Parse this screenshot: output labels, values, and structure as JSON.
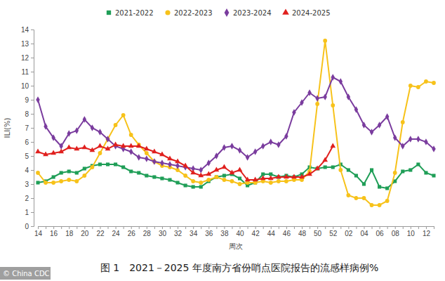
{
  "chart_data": {
    "type": "line",
    "title": "图 1　2021－2025 年度南方省份哨点医院报告的流感样病例%",
    "x_label": "周次",
    "y_label": "ILI(%)",
    "annotations": [
      "© China CDC"
    ],
    "categories": [
      "14",
      null,
      "16",
      null,
      "18",
      null,
      "20",
      null,
      "22",
      null,
      "24",
      null,
      "26",
      null,
      "28",
      null,
      "30",
      null,
      "32",
      null,
      "34",
      null,
      "36",
      null,
      "38",
      null,
      "40",
      null,
      "42",
      null,
      "44",
      null,
      "46",
      null,
      "48",
      null,
      "50",
      null,
      "52",
      null,
      "02",
      null,
      "04",
      null,
      "06",
      null,
      "08",
      null,
      "10",
      null,
      "12",
      null
    ],
    "ylim": [
      0,
      14
    ],
    "yticks": [
      0,
      1,
      2,
      3,
      4,
      5,
      6,
      7,
      8,
      9,
      10,
      11,
      12,
      13,
      14
    ],
    "grid": false,
    "legend": "top",
    "series": [
      {
        "name": "2021-2022",
        "color": "#1f9e57",
        "marker": "square",
        "line_style": "solid",
        "values": [
          3.1,
          3.2,
          3.5,
          3.8,
          3.9,
          3.8,
          4.1,
          4.3,
          4.4,
          4.4,
          4.4,
          4.2,
          3.9,
          3.8,
          3.6,
          3.5,
          3.4,
          3.3,
          3.1,
          2.9,
          2.8,
          2.8,
          3.2,
          3.5,
          3.6,
          3.7,
          3.4,
          2.9,
          3.1,
          3.7,
          3.7,
          3.5,
          3.6,
          3.5,
          3.7,
          4.2,
          4.1,
          4.2,
          4.2,
          4.4,
          4.0,
          3.6,
          3.0,
          4.0,
          2.8,
          2.7,
          3.2,
          3.9,
          4.0,
          4.4,
          3.8,
          3.6
        ]
      },
      {
        "name": "2022-2023",
        "color": "#f7c21a",
        "marker": "circle",
        "line_style": "solid",
        "values": [
          3.8,
          3.1,
          3.1,
          3.2,
          3.3,
          3.2,
          3.6,
          4.2,
          5.2,
          6.2,
          7.2,
          7.9,
          6.5,
          5.8,
          5.2,
          4.6,
          4.3,
          4.2,
          4.0,
          3.6,
          3.2,
          3.1,
          3.3,
          3.5,
          3.3,
          3.2,
          3.0,
          3.1,
          3.1,
          3.2,
          3.1,
          3.2,
          3.2,
          3.3,
          3.3,
          3.9,
          8.7,
          13.2,
          8.6,
          4.0,
          2.2,
          2.0,
          2.0,
          1.5,
          1.5,
          1.8,
          3.8,
          7.4,
          10.0,
          9.9,
          10.3,
          10.2
        ]
      },
      {
        "name": "2023-2024",
        "color": "#7a3c9e",
        "marker": "diamond",
        "line_style": "solid",
        "values": [
          9.0,
          7.1,
          6.3,
          5.7,
          6.6,
          6.8,
          7.6,
          7.0,
          6.7,
          6.2,
          5.7,
          5.5,
          5.3,
          4.9,
          4.8,
          4.6,
          4.5,
          4.4,
          4.3,
          4.2,
          4.1,
          4.0,
          4.5,
          5.0,
          5.6,
          5.7,
          5.4,
          4.9,
          5.3,
          5.7,
          6.0,
          5.8,
          6.4,
          8.1,
          8.8,
          9.5,
          9.1,
          9.2,
          10.6,
          10.3,
          9.2,
          8.3,
          7.2,
          6.7,
          7.2,
          7.8,
          6.3,
          5.7,
          6.2,
          6.2,
          6.0,
          5.5
        ]
      },
      {
        "name": "2024-2025",
        "color": "#e0201e",
        "marker": "triangle",
        "line_style": "solid",
        "values": [
          5.3,
          5.1,
          5.2,
          5.3,
          5.6,
          5.5,
          5.6,
          5.4,
          5.7,
          5.5,
          5.8,
          5.7,
          5.7,
          5.7,
          5.5,
          5.3,
          5.1,
          4.8,
          4.6,
          4.3,
          3.8,
          3.6,
          3.7,
          4.0,
          4.2,
          3.8,
          4.0,
          3.3,
          3.3,
          3.4,
          3.4,
          3.5,
          3.5,
          3.5,
          3.5,
          3.7,
          4.1,
          4.7,
          5.7,
          null,
          null,
          null,
          null,
          null,
          null,
          null,
          null,
          null,
          null,
          null,
          null,
          null
        ]
      }
    ]
  }
}
